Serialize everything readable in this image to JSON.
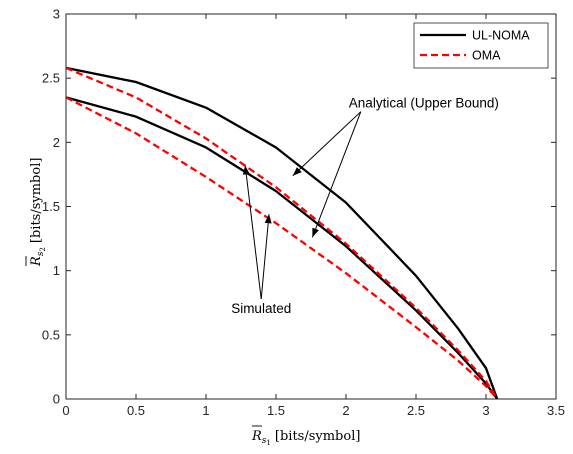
{
  "chart_data": {
    "type": "line",
    "xlabel": {
      "symbol": "R",
      "sub": "s",
      "subsub": "1",
      "units": "[bits/symbol]"
    },
    "ylabel": {
      "symbol": "R",
      "sub": "s",
      "subsub": "2",
      "units": "[bits/symbol]"
    },
    "xlim": [
      0,
      3.5
    ],
    "ylim": [
      0,
      3
    ],
    "xticks": [
      "0",
      "0.5",
      "1",
      "1.5",
      "2",
      "2.5",
      "3",
      "3.5"
    ],
    "yticks": [
      "0",
      "0.5",
      "1",
      "1.5",
      "2",
      "2.5",
      "3"
    ],
    "legend": {
      "position": "top-right"
    },
    "series": [
      {
        "name": "UL-NOMA",
        "color": "#000000",
        "style": "solid",
        "curve": "upper",
        "x": [
          0,
          0.5,
          1.0,
          1.5,
          2.0,
          2.5,
          2.8,
          3.0,
          3.08
        ],
        "y": [
          2.58,
          2.47,
          2.27,
          1.96,
          1.53,
          0.96,
          0.55,
          0.24,
          0
        ]
      },
      {
        "name": "UL-NOMA",
        "color": "#000000",
        "style": "solid",
        "curve": "lower",
        "x": [
          0,
          0.5,
          1.0,
          1.5,
          2.0,
          2.5,
          2.8,
          3.0,
          3.08
        ],
        "y": [
          2.35,
          2.2,
          1.96,
          1.62,
          1.19,
          0.69,
          0.36,
          0.12,
          0
        ]
      },
      {
        "name": "OMA",
        "color": "#ff0000",
        "style": "dashed",
        "curve": "upper",
        "x": [
          0,
          0.5,
          1.0,
          1.5,
          2.0,
          2.5,
          2.8,
          3.0,
          3.08
        ],
        "y": [
          2.58,
          2.35,
          2.03,
          1.65,
          1.21,
          0.71,
          0.38,
          0.14,
          0
        ]
      },
      {
        "name": "OMA",
        "color": "#ff0000",
        "style": "dashed",
        "curve": "lower",
        "x": [
          0,
          0.5,
          1.0,
          1.5,
          2.0,
          2.5,
          2.8,
          3.0,
          3.08
        ],
        "y": [
          2.35,
          2.07,
          1.73,
          1.37,
          0.98,
          0.56,
          0.3,
          0.1,
          0
        ]
      }
    ],
    "annotations": [
      {
        "text": "Analytical (Upper Bound)",
        "anchor": [
          2.02,
          2.27
        ],
        "arrows_to": [
          [
            1.62,
            1.74
          ],
          [
            1.76,
            1.26
          ]
        ]
      },
      {
        "text": "Simulated",
        "anchor": [
          1.18,
          0.67
        ],
        "arrows_to": [
          [
            1.28,
            1.82
          ],
          [
            1.45,
            1.44
          ]
        ]
      }
    ]
  }
}
